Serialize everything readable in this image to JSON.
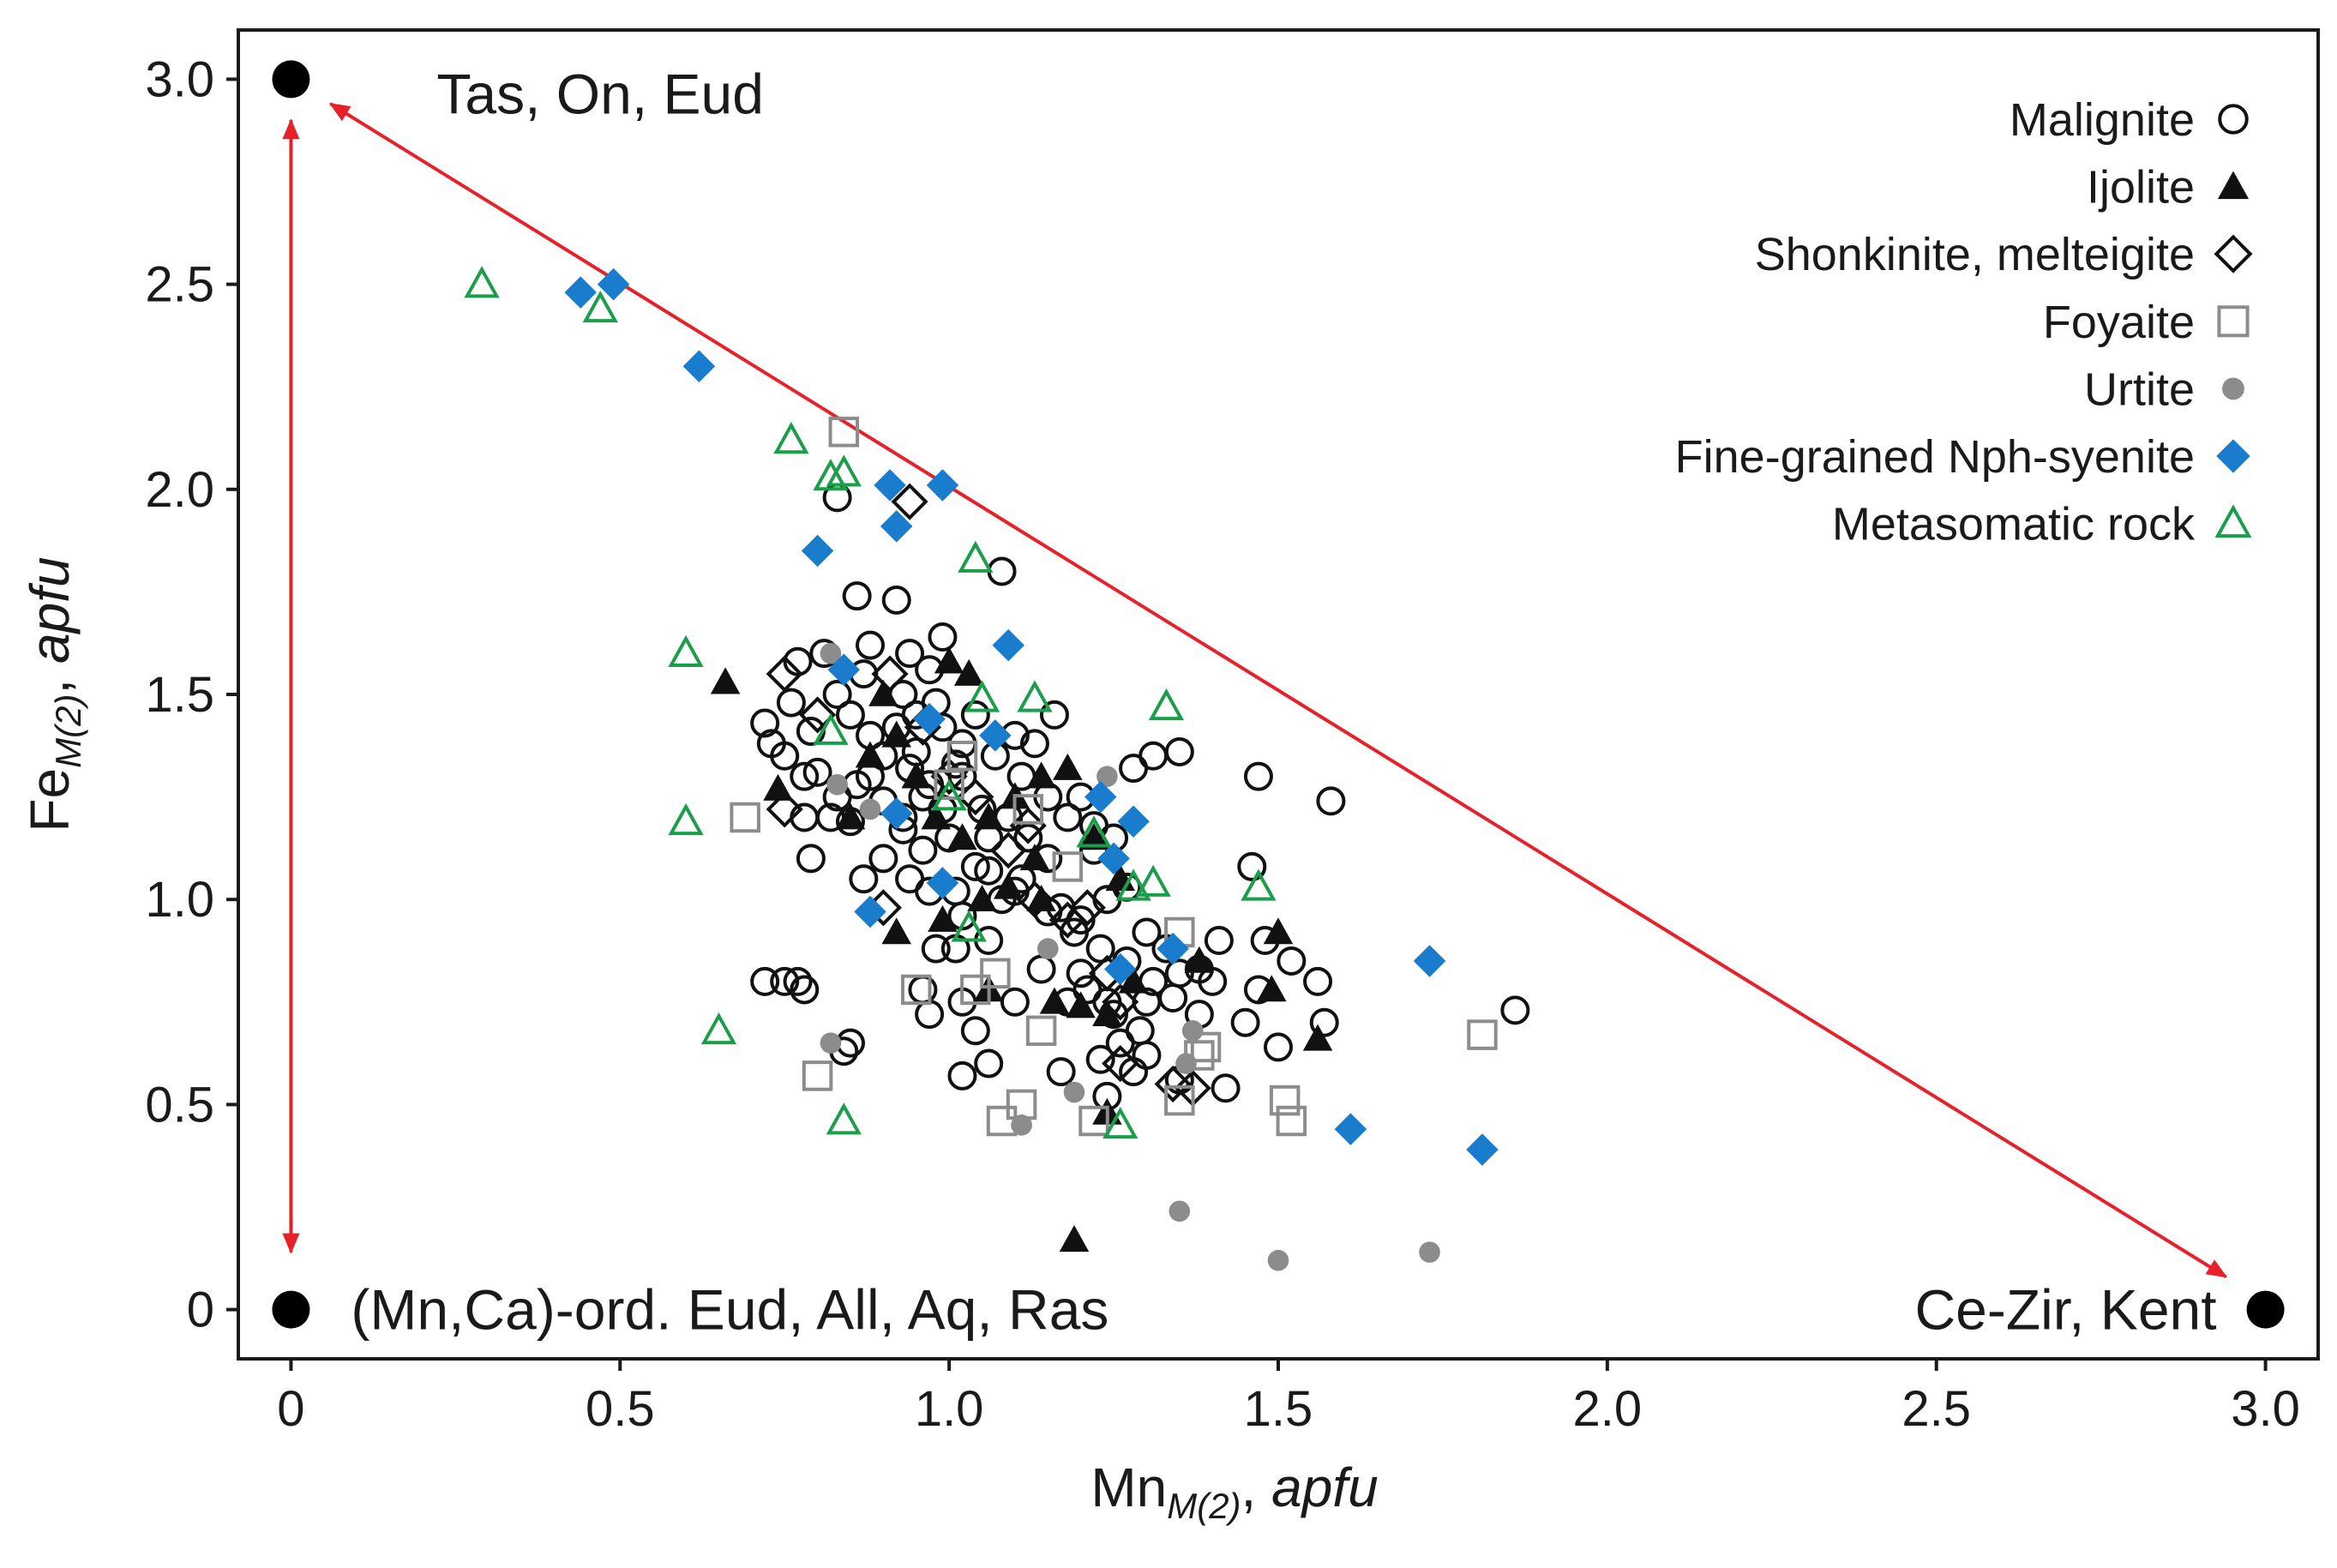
{
  "chart_data": {
    "type": "scatter",
    "title": "",
    "xlabel": {
      "main": "Mn",
      "sub": "M(2)",
      "unit": "apfu"
    },
    "ylabel": {
      "main": "Fe",
      "sub": "M(2)",
      "unit": "apfu"
    },
    "xlim": [
      -0.08,
      3.08
    ],
    "ylim": [
      -0.12,
      3.12
    ],
    "x_ticks": [
      {
        "value": 0,
        "label": "0"
      },
      {
        "value": 0.5,
        "label": "0.5"
      },
      {
        "value": 1.0,
        "label": "1.0"
      },
      {
        "value": 1.5,
        "label": "1.5"
      },
      {
        "value": 2.0,
        "label": "2.0"
      },
      {
        "value": 2.5,
        "label": "2.5"
      },
      {
        "value": 3.0,
        "label": "3.0"
      }
    ],
    "y_ticks": [
      {
        "value": 0,
        "label": "0"
      },
      {
        "value": 0.5,
        "label": "0.5"
      },
      {
        "value": 1.0,
        "label": "1.0"
      },
      {
        "value": 1.5,
        "label": "1.5"
      },
      {
        "value": 2.0,
        "label": "2.0"
      },
      {
        "value": 2.5,
        "label": "2.5"
      },
      {
        "value": 3.0,
        "label": "3.0"
      }
    ],
    "grid": false,
    "legend_position": "top-right",
    "end_members": [
      {
        "x": 0,
        "y": 3.0,
        "label": "Tas, On, Eud"
      },
      {
        "x": 0,
        "y": 0,
        "label": "(Mn,Ca)-ord. Eud, All, Aq, Ras"
      },
      {
        "x": 3.0,
        "y": 0,
        "label": "Ce-Zir, Kent"
      }
    ],
    "arrows": [
      {
        "from": [
          0,
          0.14
        ],
        "to": [
          0,
          2.9
        ],
        "color": "#e8202a",
        "double_headed": true
      },
      {
        "from": [
          0.06,
          2.94
        ],
        "to": [
          2.94,
          0.08
        ],
        "color": "#e8202a",
        "double_headed": true
      }
    ],
    "series": [
      {
        "name": "Malignite",
        "marker": "circle-open",
        "color": "#111111",
        "points": [
          [
            0.83,
            1.98
          ],
          [
            0.86,
            1.74
          ],
          [
            0.92,
            1.73
          ],
          [
            1.08,
            1.8
          ],
          [
            0.99,
            1.64
          ],
          [
            0.88,
            1.62
          ],
          [
            0.81,
            1.6
          ],
          [
            0.77,
            1.58
          ],
          [
            0.94,
            1.6
          ],
          [
            0.97,
            1.56
          ],
          [
            0.87,
            1.55
          ],
          [
            0.93,
            1.5
          ],
          [
            0.95,
            1.45
          ],
          [
            0.99,
            1.42
          ],
          [
            1.02,
            1.38
          ],
          [
            1.07,
            1.35
          ],
          [
            1.11,
            1.3
          ],
          [
            1.16,
            1.45
          ],
          [
            1.13,
            1.38
          ],
          [
            0.76,
            1.48
          ],
          [
            0.79,
            1.41
          ],
          [
            0.75,
            1.35
          ],
          [
            0.72,
            1.43
          ],
          [
            0.8,
            1.31
          ],
          [
            0.83,
            1.25
          ],
          [
            0.85,
            1.19
          ],
          [
            0.9,
            1.24
          ],
          [
            0.93,
            1.17
          ],
          [
            0.96,
            1.12
          ],
          [
            1.0,
            1.15
          ],
          [
            1.04,
            1.08
          ],
          [
            1.08,
            1.0
          ],
          [
            1.11,
            1.05
          ],
          [
            1.15,
            0.97
          ],
          [
            1.19,
            0.92
          ],
          [
            1.23,
            0.88
          ],
          [
            1.27,
            0.85
          ],
          [
            1.31,
            0.8
          ],
          [
            1.34,
            0.76
          ],
          [
            1.38,
            0.72
          ],
          [
            0.78,
            1.2
          ],
          [
            0.79,
            1.1
          ],
          [
            0.87,
            1.05
          ],
          [
            0.97,
            1.02
          ],
          [
            1.02,
            0.96
          ],
          [
            1.06,
            0.9
          ],
          [
            1.14,
            0.83
          ],
          [
            1.21,
            0.78
          ],
          [
            1.25,
            0.72
          ],
          [
            1.29,
            0.68
          ],
          [
            0.72,
            0.8
          ],
          [
            0.75,
            0.8
          ],
          [
            0.77,
            0.8
          ],
          [
            0.78,
            0.78
          ],
          [
            0.96,
            0.78
          ],
          [
            0.97,
            0.72
          ],
          [
            0.98,
            0.88
          ],
          [
            1.01,
            0.88
          ],
          [
            1.02,
            0.75
          ],
          [
            1.04,
            0.68
          ],
          [
            1.06,
            0.6
          ],
          [
            1.02,
            0.57
          ],
          [
            1.1,
            0.75
          ],
          [
            1.17,
            0.58
          ],
          [
            1.23,
            0.61
          ],
          [
            1.24,
            0.52
          ],
          [
            1.26,
            0.65
          ],
          [
            1.28,
            0.58
          ],
          [
            1.3,
            0.62
          ],
          [
            1.35,
            0.56
          ],
          [
            1.42,
            0.54
          ],
          [
            1.38,
            0.83
          ],
          [
            1.41,
            0.9
          ],
          [
            1.45,
            0.7
          ],
          [
            1.47,
            0.78
          ],
          [
            1.5,
            0.64
          ],
          [
            1.52,
            0.85
          ],
          [
            1.56,
            0.8
          ],
          [
            1.57,
            0.7
          ],
          [
            1.48,
            0.9
          ],
          [
            1.46,
            1.08
          ],
          [
            1.47,
            1.3
          ],
          [
            1.58,
            1.24
          ],
          [
            1.86,
            0.73
          ],
          [
            1.28,
            1.32
          ],
          [
            1.31,
            1.35
          ],
          [
            1.35,
            1.36
          ],
          [
            1.2,
            1.25
          ],
          [
            1.22,
            1.12
          ],
          [
            1.25,
            1.15
          ],
          [
            1.18,
            1.2
          ],
          [
            1.15,
            1.1
          ],
          [
            1.12,
            1.15
          ],
          [
            1.05,
            1.22
          ],
          [
            1.02,
            1.3
          ],
          [
            0.97,
            1.28
          ],
          [
            0.94,
            1.32
          ],
          [
            0.9,
            1.35
          ],
          [
            0.88,
            1.4
          ],
          [
            0.85,
            1.45
          ],
          [
            0.83,
            1.5
          ],
          [
            0.86,
            1.28
          ],
          [
            0.82,
            1.2
          ],
          [
            0.9,
            1.1
          ],
          [
            0.94,
            1.05
          ],
          [
            1.01,
            1.02
          ],
          [
            1.06,
            1.07
          ],
          [
            1.1,
            1.02
          ],
          [
            1.17,
            0.98
          ],
          [
            1.2,
            0.95
          ],
          [
            1.24,
            1.0
          ],
          [
            1.27,
            1.03
          ],
          [
            1.3,
            0.92
          ],
          [
            1.33,
            0.88
          ],
          [
            1.35,
            0.82
          ],
          [
            1.4,
            0.8
          ],
          [
            1.2,
            0.82
          ],
          [
            1.18,
            0.75
          ],
          [
            1.24,
            0.75
          ],
          [
            0.85,
            0.65
          ],
          [
            0.84,
            0.63
          ],
          [
            0.93,
            1.2
          ],
          [
            0.96,
            1.25
          ],
          [
            0.99,
            1.22
          ],
          [
            1.06,
            1.15
          ],
          [
            1.09,
            1.2
          ],
          [
            0.92,
            1.42
          ],
          [
            0.98,
            1.48
          ],
          [
            1.04,
            1.45
          ],
          [
            1.1,
            1.4
          ],
          [
            0.88,
            1.3
          ],
          [
            0.95,
            1.36
          ],
          [
            1.01,
            1.33
          ],
          [
            0.73,
            1.38
          ],
          [
            0.78,
            1.3
          ],
          [
            1.15,
            1.25
          ],
          [
            1.22,
            1.18
          ],
          [
            1.3,
            0.75
          ]
        ]
      },
      {
        "name": "Ijolite",
        "marker": "triangle-filled",
        "color": "#111111",
        "points": [
          [
            0.66,
            1.53
          ],
          [
            0.74,
            1.27
          ],
          [
            1.0,
            1.58
          ],
          [
            1.03,
            1.55
          ],
          [
            0.88,
            1.35
          ],
          [
            0.92,
            1.4
          ],
          [
            0.95,
            1.3
          ],
          [
            0.98,
            1.2
          ],
          [
            1.02,
            1.15
          ],
          [
            1.06,
            1.2
          ],
          [
            1.1,
            1.25
          ],
          [
            1.14,
            1.3
          ],
          [
            1.18,
            1.32
          ],
          [
            1.22,
            1.15
          ],
          [
            1.26,
            1.05
          ],
          [
            1.13,
            1.1
          ],
          [
            1.09,
            1.03
          ],
          [
            1.05,
            1.0
          ],
          [
            0.99,
            0.95
          ],
          [
            0.92,
            0.92
          ],
          [
            1.06,
            0.78
          ],
          [
            1.16,
            0.75
          ],
          [
            1.2,
            0.74
          ],
          [
            1.24,
            0.72
          ],
          [
            1.28,
            0.8
          ],
          [
            1.38,
            0.85
          ],
          [
            1.5,
            0.92
          ],
          [
            1.49,
            0.78
          ],
          [
            1.56,
            0.66
          ],
          [
            1.24,
            0.48
          ],
          [
            1.19,
            0.17
          ],
          [
            0.85,
            1.2
          ],
          [
            0.9,
            1.5
          ],
          [
            1.14,
            1.0
          ]
        ]
      },
      {
        "name": "Shonkinite, melteigite",
        "marker": "diamond-open",
        "color": "#111111",
        "points": [
          [
            0.75,
            1.55
          ],
          [
            0.8,
            1.45
          ],
          [
            0.75,
            1.22
          ],
          [
            0.94,
            1.97
          ],
          [
            0.91,
            1.55
          ],
          [
            0.96,
            1.42
          ],
          [
            1.0,
            1.3
          ],
          [
            1.04,
            1.25
          ],
          [
            1.09,
            1.12
          ],
          [
            1.13,
            1.0
          ],
          [
            1.18,
            0.95
          ],
          [
            1.24,
            0.82
          ],
          [
            1.26,
            0.75
          ],
          [
            1.26,
            0.6
          ],
          [
            1.34,
            0.55
          ],
          [
            1.37,
            0.54
          ],
          [
            0.9,
            0.98
          ],
          [
            1.21,
            0.98
          ],
          [
            1.12,
            1.18
          ]
        ]
      },
      {
        "name": "Foyaite",
        "marker": "square-open",
        "color": "#8c8c8c",
        "points": [
          [
            0.84,
            2.14
          ],
          [
            0.69,
            1.2
          ],
          [
            0.8,
            0.57
          ],
          [
            0.95,
            0.78
          ],
          [
            1.04,
            0.78
          ],
          [
            1.07,
            0.82
          ],
          [
            1.08,
            0.46
          ],
          [
            1.11,
            0.5
          ],
          [
            1.14,
            0.68
          ],
          [
            1.22,
            0.46
          ],
          [
            1.35,
            0.92
          ],
          [
            1.35,
            0.51
          ],
          [
            1.38,
            0.62
          ],
          [
            1.39,
            0.64
          ],
          [
            1.51,
            0.51
          ],
          [
            1.52,
            0.46
          ],
          [
            1.81,
            0.67
          ],
          [
            1.0,
            1.28
          ],
          [
            1.12,
            1.22
          ],
          [
            1.18,
            1.08
          ],
          [
            1.02,
            1.35
          ]
        ]
      },
      {
        "name": "Urtite",
        "marker": "circle-filled",
        "color": "#8c8c8c",
        "points": [
          [
            0.82,
            1.6
          ],
          [
            0.83,
            1.28
          ],
          [
            0.88,
            1.22
          ],
          [
            0.82,
            0.65
          ],
          [
            1.11,
            0.45
          ],
          [
            1.15,
            0.88
          ],
          [
            1.19,
            0.53
          ],
          [
            1.24,
            1.3
          ],
          [
            1.37,
            0.68
          ],
          [
            1.36,
            0.6
          ],
          [
            1.35,
            0.24
          ],
          [
            1.5,
            0.12
          ],
          [
            1.73,
            0.14
          ]
        ]
      },
      {
        "name": "Fine-grained Nph-syenite",
        "marker": "diamond-filled",
        "color": "#1a7ccc",
        "points": [
          [
            0.44,
            2.48
          ],
          [
            0.49,
            2.5
          ],
          [
            0.62,
            2.3
          ],
          [
            0.8,
            1.85
          ],
          [
            0.91,
            2.01
          ],
          [
            0.92,
            1.91
          ],
          [
            0.99,
            2.01
          ],
          [
            1.09,
            1.62
          ],
          [
            0.84,
            1.56
          ],
          [
            0.97,
            1.44
          ],
          [
            1.07,
            1.4
          ],
          [
            0.92,
            1.21
          ],
          [
            1.23,
            1.25
          ],
          [
            1.28,
            1.19
          ],
          [
            1.25,
            1.1
          ],
          [
            0.99,
            1.04
          ],
          [
            0.88,
            0.97
          ],
          [
            1.34,
            0.88
          ],
          [
            1.73,
            0.85
          ],
          [
            1.26,
            0.83
          ],
          [
            1.61,
            0.44
          ],
          [
            1.81,
            0.39
          ]
        ]
      },
      {
        "name": "Metasomatic rock",
        "marker": "triangle-open",
        "color": "#1a9e4a",
        "points": [
          [
            0.29,
            2.5
          ],
          [
            0.47,
            2.44
          ],
          [
            0.76,
            2.12
          ],
          [
            0.82,
            2.03
          ],
          [
            0.84,
            2.04
          ],
          [
            1.04,
            1.83
          ],
          [
            0.6,
            1.6
          ],
          [
            0.6,
            1.19
          ],
          [
            0.65,
            0.68
          ],
          [
            0.84,
            0.46
          ],
          [
            0.82,
            1.41
          ],
          [
            1.05,
            1.49
          ],
          [
            1.13,
            1.49
          ],
          [
            1.33,
            1.47
          ],
          [
            1.22,
            1.16
          ],
          [
            1.28,
            1.03
          ],
          [
            1.31,
            1.04
          ],
          [
            1.47,
            1.03
          ],
          [
            1.03,
            0.93
          ],
          [
            1.26,
            0.45
          ],
          [
            1.0,
            1.25
          ]
        ]
      }
    ]
  }
}
